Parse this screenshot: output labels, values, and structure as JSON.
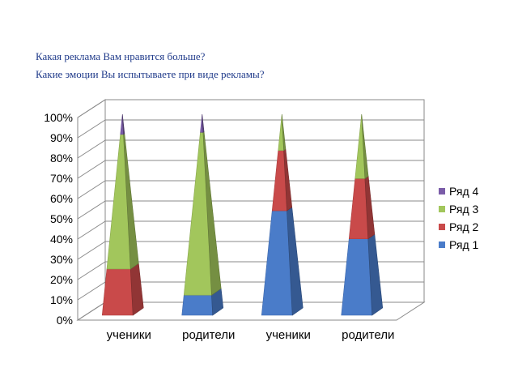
{
  "header": {
    "line1": "Какая реклама Вам нравится больше?",
    "line2": "Какие эмоции Вы испытываете при виде рекламы?"
  },
  "chart_data": {
    "type": "bar",
    "subtype": "stacked-100-pyramid-3d",
    "title": "Какая реклама Вам нравится больше? / Какие эмоции Вы испытываете при виде рекламы?",
    "xlabel": "",
    "ylabel": "",
    "categories": [
      "ученики",
      "родители",
      "ученики",
      "родители"
    ],
    "series": [
      {
        "name": "Ряд 1",
        "color": "#4a7cc9",
        "values": [
          0,
          10,
          52,
          38
        ]
      },
      {
        "name": "Ряд 2",
        "color": "#c94a4a",
        "values": [
          23,
          0,
          30,
          30
        ]
      },
      {
        "name": "Ряд 3",
        "color": "#a2c65c",
        "values": [
          67,
          81,
          18,
          32
        ]
      },
      {
        "name": "Ряд 4",
        "color": "#7a5ca8",
        "values": [
          10,
          9,
          0,
          0
        ]
      }
    ],
    "y_ticks": [
      "0%",
      "10%",
      "20%",
      "30%",
      "40%",
      "50%",
      "60%",
      "70%",
      "80%",
      "90%",
      "100%"
    ],
    "ylim": [
      0,
      100
    ],
    "grid": true,
    "legend_position": "right",
    "legend_order": [
      "Ряд 4",
      "Ряд 3",
      "Ряд 2",
      "Ряд 1"
    ]
  }
}
